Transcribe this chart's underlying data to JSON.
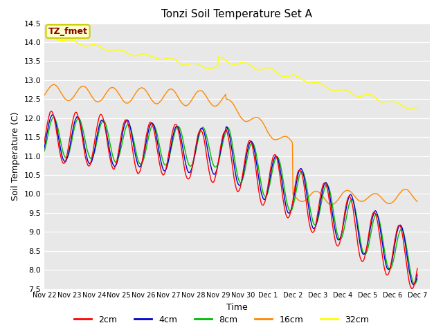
{
  "title": "Tonzi Soil Temperature Set A",
  "xlabel": "Time",
  "ylabel": "Soil Temperature (C)",
  "ylim": [
    7.5,
    14.5
  ],
  "annotation_text": "TZ_fmet",
  "annotation_color": "#8B0000",
  "annotation_bg": "#FFFFCC",
  "annotation_border": "#CCCC00",
  "colors": {
    "2cm": "#FF0000",
    "4cm": "#0000CC",
    "8cm": "#00BB00",
    "16cm": "#FF8800",
    "32cm": "#FFFF00"
  },
  "xtick_labels": [
    "Nov 22",
    "Nov 23",
    "Nov 24",
    "Nov 25",
    "Nov 26",
    "Nov 27",
    "Nov 28",
    "Nov 29",
    "Nov 30",
    "Dec 1",
    "Dec 2",
    "Dec 3",
    "Dec 4",
    "Dec 5",
    "Dec 6",
    "Dec 7"
  ],
  "grid_color": "#CCCCCC",
  "plot_bg": "#E8E8E8",
  "line_width": 1.0
}
